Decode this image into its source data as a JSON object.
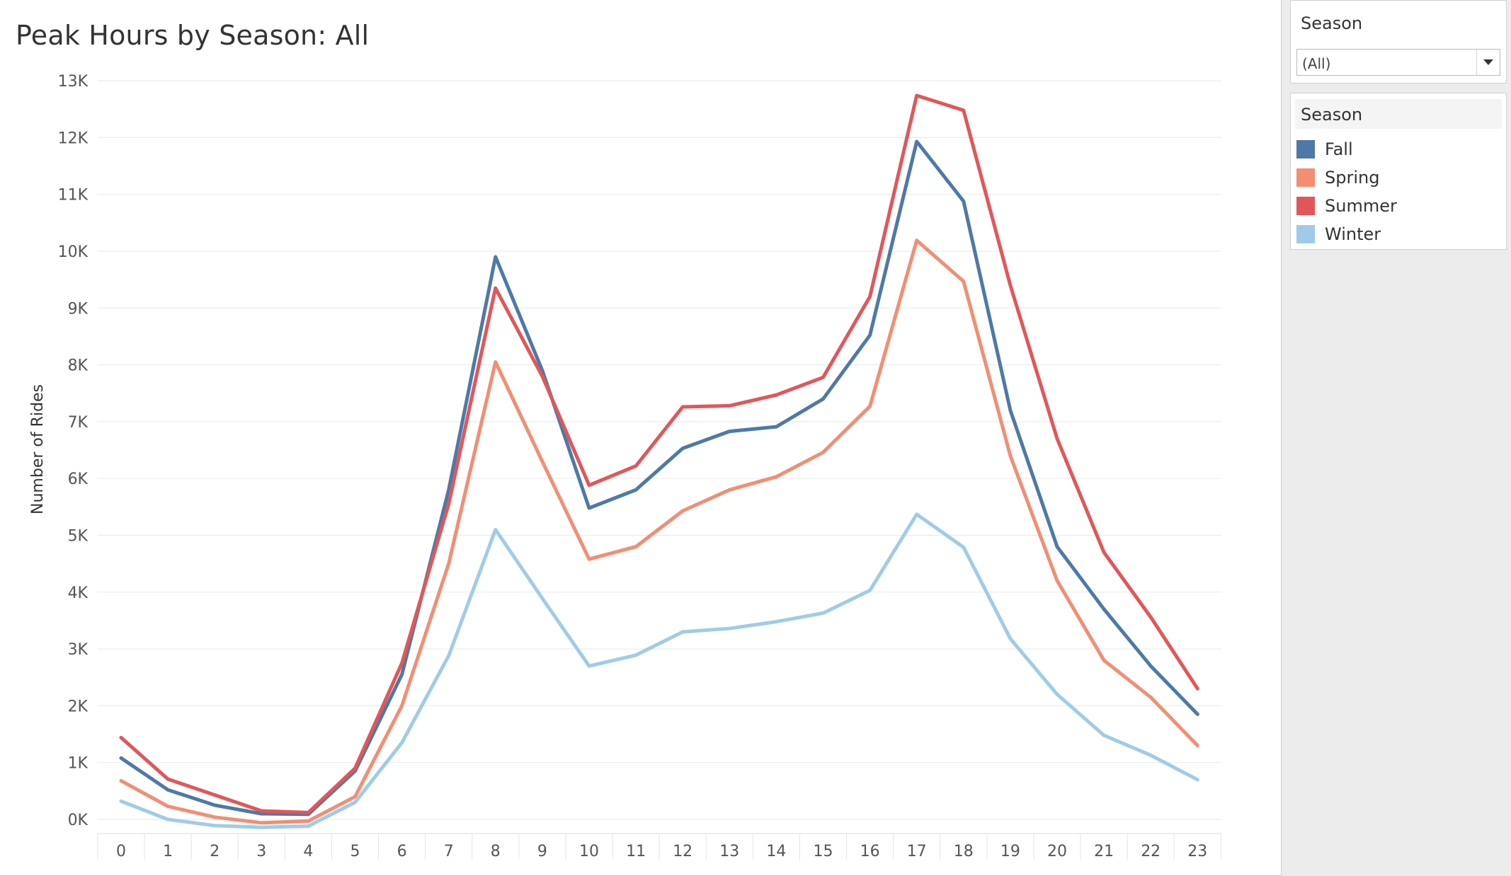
{
  "sheet": {
    "title": "Peak Hours by Season: All"
  },
  "filter": {
    "title": "Season",
    "value": "(All)"
  },
  "legend": {
    "title": "Season",
    "items": [
      {
        "label": "Fall",
        "color": "#4e79a7"
      },
      {
        "label": "Spring",
        "color": "#f28e73"
      },
      {
        "label": "Summer",
        "color": "#e15759"
      },
      {
        "label": "Winter",
        "color": "#a0cbe8"
      }
    ]
  },
  "chart_data": {
    "type": "line",
    "title": "Peak Hours by Season: All",
    "xlabel": "",
    "ylabel": "Number of Rides",
    "x": [
      0,
      1,
      2,
      3,
      4,
      5,
      6,
      7,
      8,
      9,
      10,
      11,
      12,
      13,
      14,
      15,
      16,
      17,
      18,
      19,
      20,
      21,
      22,
      23
    ],
    "x_tick_labels": [
      "0",
      "1",
      "2",
      "3",
      "4",
      "5",
      "6",
      "7",
      "8",
      "9",
      "10",
      "11",
      "12",
      "13",
      "14",
      "15",
      "16",
      "17",
      "18",
      "19",
      "20",
      "21",
      "22",
      "23"
    ],
    "y_ticks": [
      0,
      1000,
      2000,
      3000,
      4000,
      5000,
      6000,
      7000,
      8000,
      9000,
      10000,
      11000,
      12000,
      13000
    ],
    "y_tick_labels": [
      "0K",
      "1K",
      "2K",
      "3K",
      "4K",
      "5K",
      "6K",
      "7K",
      "8K",
      "9K",
      "10K",
      "11K",
      "12K",
      "13K"
    ],
    "ylim": [
      -200,
      13000
    ],
    "grid": true,
    "legend_position": "right",
    "series": [
      {
        "name": "Fall",
        "color": "#4e79a7",
        "values": [
          1080,
          520,
          250,
          100,
          90,
          850,
          2550,
          5800,
          9900,
          7900,
          5480,
          5800,
          6530,
          6830,
          6910,
          7400,
          8520,
          11930,
          10880,
          7200,
          4800,
          3700,
          2700,
          1850
        ]
      },
      {
        "name": "Spring",
        "color": "#f28e73",
        "values": [
          680,
          230,
          40,
          -60,
          -30,
          400,
          2000,
          4500,
          8050,
          6300,
          4580,
          4800,
          5430,
          5800,
          6030,
          6460,
          7270,
          10190,
          9470,
          6400,
          4200,
          2800,
          2150,
          1300
        ]
      },
      {
        "name": "Summer",
        "color": "#e15759",
        "values": [
          1440,
          710,
          430,
          150,
          120,
          900,
          2750,
          5550,
          9350,
          7800,
          5880,
          6220,
          7260,
          7280,
          7470,
          7780,
          9200,
          12740,
          12480,
          9400,
          6700,
          4700,
          3560,
          2300
        ]
      },
      {
        "name": "Winter",
        "color": "#a0cbe8",
        "values": [
          320,
          0,
          -110,
          -140,
          -120,
          300,
          1350,
          2880,
          5100,
          3890,
          2700,
          2890,
          3300,
          3360,
          3480,
          3630,
          4030,
          5370,
          4790,
          3180,
          2200,
          1480,
          1130,
          700
        ]
      }
    ]
  }
}
